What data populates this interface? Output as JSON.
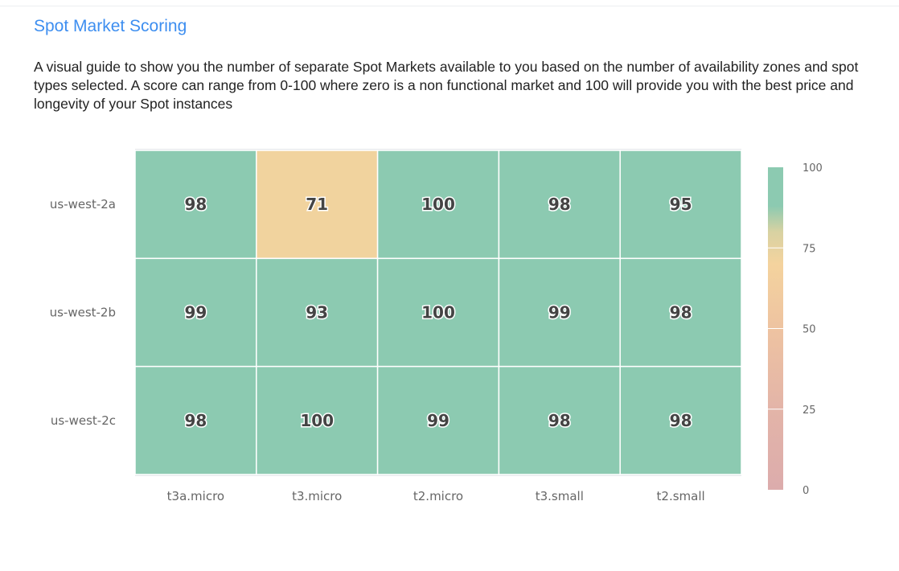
{
  "title": "Spot Market Scoring",
  "description": "A visual guide to show you the number of separate Spot Markets available to you based on the number of availability zones and spot types selected. A score can range from 0-100 where zero is a non functional market and 100 will provide you with the best price and longevity of your Spot instances",
  "chart_data": {
    "type": "heatmap",
    "x_categories": [
      "t3a.micro",
      "t3.micro",
      "t2.micro",
      "t3.small",
      "t2.small"
    ],
    "y_categories": [
      "us-west-2a",
      "us-west-2b",
      "us-west-2c"
    ],
    "values": [
      [
        98,
        71,
        100,
        98,
        95
      ],
      [
        99,
        93,
        100,
        99,
        98
      ],
      [
        98,
        100,
        99,
        98,
        98
      ]
    ],
    "colorbar": {
      "range": [
        0,
        100
      ],
      "ticks": [
        "0",
        "25",
        "50",
        "75",
        "100"
      ]
    },
    "colorscale": [
      [
        0,
        "#dcacac"
      ],
      [
        25,
        "#e3b4a8"
      ],
      [
        50,
        "#eec3a1"
      ],
      [
        70,
        "#f4d39e"
      ],
      [
        80,
        "#d8d2a2"
      ],
      [
        88,
        "#8ccab1"
      ],
      [
        100,
        "#8ccab1"
      ]
    ]
  }
}
